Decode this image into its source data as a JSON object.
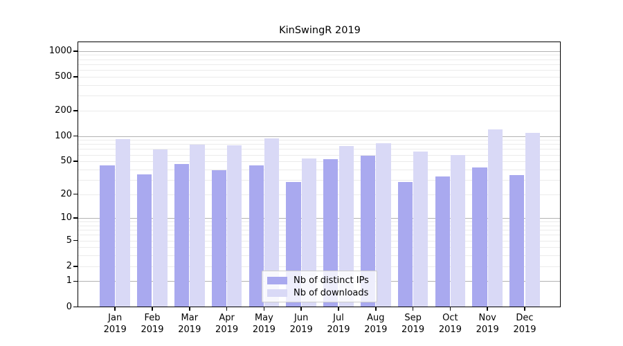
{
  "chart_data": {
    "type": "bar",
    "title": "KinSwingR 2019",
    "categories": [
      "Jan",
      "Feb",
      "Mar",
      "Apr",
      "May",
      "Jun",
      "Jul",
      "Aug",
      "Sep",
      "Oct",
      "Nov",
      "Dec"
    ],
    "x_tick_second_line": "2019",
    "series": [
      {
        "name": "Nb of distinct IPs",
        "color": "#a9a9ef",
        "values": [
          45,
          35,
          46,
          39,
          45,
          28,
          53,
          58,
          28,
          33,
          42,
          34
        ]
      },
      {
        "name": "Nb of downloads",
        "color": "#d9d9f6",
        "values": [
          92,
          69,
          79,
          77,
          93,
          54,
          76,
          82,
          66,
          59,
          119,
          109
        ]
      }
    ],
    "y_ticks": [
      0,
      1,
      2,
      5,
      10,
      20,
      50,
      100,
      200,
      500,
      1000
    ],
    "y_scale": "log10(1+value)",
    "ylim": [
      0,
      1270
    ],
    "grid": "on",
    "legend_position": "lower-center",
    "colors": {
      "major_grid": "#b2b2b2",
      "minor_grid": "#ebebeb",
      "axis": "#000000",
      "background": "#ffffff"
    }
  }
}
